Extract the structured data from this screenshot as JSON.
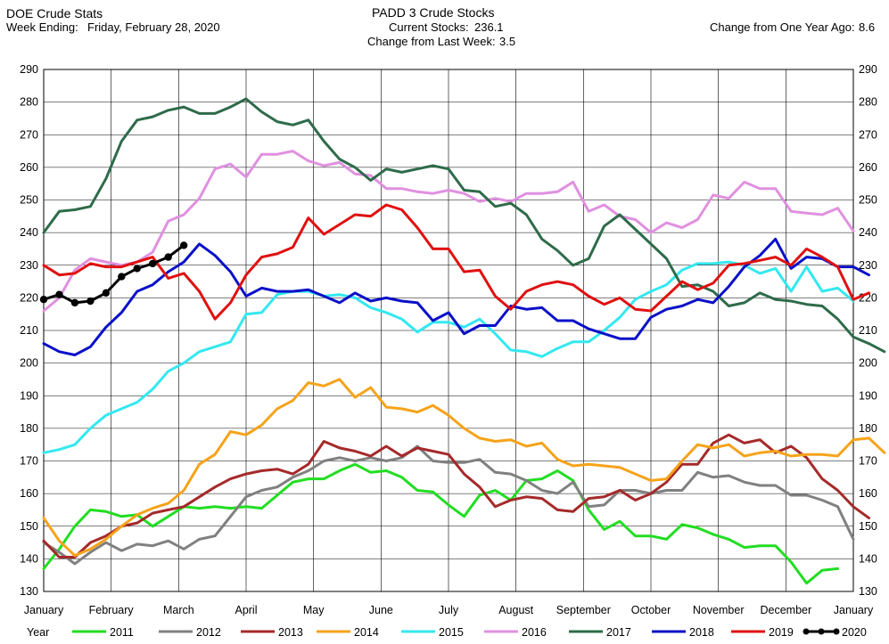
{
  "header": {
    "app_title": "DOE Crude Stats",
    "week_label": "Week Ending:",
    "week_value": "Friday, February 28, 2020",
    "chart_title": "PADD 3 Crude Stocks",
    "current_label": "Current Stocks:",
    "current_value": "236.1",
    "change_week_label": "Change from Last Week:",
    "change_week_value": "3.5",
    "change_year_label": "Change from One Year Ago:",
    "change_year_value": "8.6"
  },
  "chart_data": {
    "type": "line",
    "title": "PADD 3 Crude Stocks",
    "ylim": [
      130,
      290
    ],
    "yticks": [
      130,
      140,
      150,
      160,
      170,
      180,
      190,
      200,
      210,
      220,
      230,
      240,
      250,
      260,
      270,
      280,
      290
    ],
    "xlim": [
      0,
      52
    ],
    "month_labels": [
      "January",
      "February",
      "March",
      "April",
      "May",
      "June",
      "July",
      "August",
      "September",
      "October",
      "November",
      "December",
      "January"
    ],
    "grid": true,
    "legend_title": "Year",
    "legend_position": "bottom",
    "series": [
      {
        "name": "2011",
        "color": "#22dd22",
        "values": [
          137,
          143,
          150,
          155,
          154.5,
          153,
          153.5,
          150,
          153,
          156,
          155.5,
          156,
          155.5,
          156,
          155.5,
          159.5,
          163.5,
          164.5,
          164.5,
          167,
          169,
          166.5,
          167,
          165,
          161,
          160.5,
          156.5,
          153,
          159.5,
          161,
          158,
          164,
          164.5,
          167,
          164,
          155,
          149,
          151.5,
          147,
          147,
          146,
          150.5,
          149.5,
          147.5,
          146,
          143.5,
          144,
          144,
          139,
          132.5,
          136.5,
          137
        ]
      },
      {
        "name": "2012",
        "color": "#808080",
        "values": [
          145,
          142,
          138.5,
          142,
          145,
          142.5,
          144.5,
          144,
          145.5,
          143,
          146,
          147,
          153,
          159,
          161,
          162,
          165,
          167,
          170,
          171,
          170,
          171,
          170,
          171,
          174.5,
          170,
          169.5,
          169.5,
          170.5,
          166.5,
          166,
          164,
          161,
          160,
          163.5,
          156,
          156.5,
          161,
          161,
          160,
          161,
          161,
          166.5,
          165,
          165.5,
          163.5,
          162.5,
          162.5,
          159.5,
          159.5,
          158,
          156,
          146
        ]
      },
      {
        "name": "2013",
        "color": "#a52a2a",
        "values": [
          145.5,
          140.5,
          140.5,
          145,
          147,
          150,
          151,
          154,
          155,
          156,
          159,
          162,
          164.5,
          166,
          167,
          167.5,
          166,
          169,
          176,
          174,
          173,
          171.5,
          174.5,
          171.5,
          174,
          173,
          172,
          166,
          162,
          156,
          158,
          159,
          158.5,
          155,
          154.5,
          158.5,
          159,
          161,
          158,
          160,
          163.5,
          169,
          169,
          175.5,
          178,
          175.5,
          176.5,
          172.5,
          174.5,
          171,
          164.5,
          161,
          156,
          152.5
        ]
      },
      {
        "name": "2014",
        "color": "#f5a31a",
        "values": [
          152.5,
          145.5,
          141,
          143,
          146,
          150,
          153.5,
          155.5,
          157,
          161,
          169,
          172,
          179,
          178,
          181,
          186,
          188.5,
          194,
          193,
          195,
          189.5,
          192.5,
          186.5,
          186,
          185,
          187,
          184,
          180,
          177,
          176,
          176.5,
          174.5,
          175.5,
          170.5,
          168.5,
          169,
          168.5,
          168,
          166,
          164,
          164.5,
          170,
          175,
          174,
          175,
          171.5,
          172.5,
          173,
          171.5,
          172,
          172,
          171.5,
          176.5,
          177,
          172.5
        ]
      },
      {
        "name": "2015",
        "color": "#33e8f0",
        "values": [
          172.5,
          173.5,
          175,
          180,
          184,
          186,
          188,
          192,
          197.5,
          200,
          203.5,
          205,
          206.5,
          215,
          215.5,
          221,
          222,
          222,
          220.5,
          221,
          220,
          217,
          215.5,
          213.5,
          209.5,
          212.5,
          212.5,
          211,
          213.5,
          209,
          204,
          203.5,
          202,
          204.5,
          206.5,
          206.5,
          210,
          214,
          219.5,
          222,
          224,
          228.5,
          230.5,
          230.5,
          231,
          230,
          227.5,
          229,
          222,
          229.5,
          222,
          223,
          219
        ]
      },
      {
        "name": "2016",
        "color": "#e090e0",
        "values": [
          216,
          220,
          228.5,
          232,
          231,
          230,
          231,
          234,
          243.5,
          245.5,
          250.5,
          259.5,
          261,
          257,
          264,
          264,
          265,
          262,
          260.5,
          261.5,
          258,
          257.5,
          253.5,
          253.5,
          252.5,
          252,
          253,
          252,
          249.5,
          250.5,
          249.5,
          252,
          252,
          252.5,
          255.5,
          246.5,
          248.5,
          245,
          244,
          240,
          243,
          241.5,
          244,
          251.5,
          250.5,
          255.5,
          253.5,
          253.5,
          246.5,
          246,
          245.5,
          247.5,
          240.5
        ]
      },
      {
        "name": "2017",
        "color": "#2e6b4a",
        "values": [
          240,
          246.5,
          247,
          248,
          256.5,
          268,
          274.5,
          275.5,
          277.5,
          278.5,
          276.5,
          276.5,
          278.5,
          281,
          277,
          274,
          273,
          274.5,
          268,
          262.5,
          260,
          256,
          259.5,
          258.5,
          259.5,
          260.5,
          259.5,
          253,
          252.5,
          248,
          249,
          245.5,
          238,
          234.5,
          230,
          232,
          242,
          245.5,
          241,
          236.5,
          232,
          223.5,
          224,
          222,
          217.5,
          218.5,
          221.5,
          219.5,
          219,
          218,
          217.5,
          213.5,
          208,
          206,
          203.5
        ]
      },
      {
        "name": "2018",
        "color": "#0a10c8",
        "values": [
          206,
          203.5,
          202.5,
          205,
          211,
          215.5,
          222,
          224,
          228,
          231,
          236.5,
          233,
          228,
          220.5,
          223,
          222,
          222,
          222.5,
          220.5,
          218.5,
          221.5,
          219,
          220,
          219,
          218.5,
          213,
          215.5,
          209,
          211.5,
          211.5,
          217.5,
          216.5,
          217,
          213,
          213,
          210.5,
          209,
          207.5,
          207.5,
          214,
          216.5,
          217.5,
          219.5,
          218.5,
          223.5,
          229.5,
          233,
          238,
          229,
          232.5,
          232,
          229.5,
          229.5,
          227
        ]
      },
      {
        "name": "2019",
        "color": "#e01010",
        "values": [
          230,
          227,
          227.5,
          230.5,
          229.5,
          229.5,
          231,
          232.5,
          226,
          227.5,
          222,
          213.5,
          218.5,
          227,
          232.5,
          233.5,
          235.5,
          244.5,
          239.5,
          242.5,
          245.5,
          245,
          248.5,
          247,
          241.5,
          235,
          235,
          228,
          228.5,
          220.5,
          216.5,
          222,
          224,
          225,
          224,
          220.5,
          218,
          220,
          216.5,
          216,
          220.5,
          225,
          222.5,
          224.5,
          230,
          230.5,
          231.5,
          232.5,
          230,
          235,
          232.5,
          229.5,
          219.5,
          221.5
        ]
      },
      {
        "name": "2020",
        "color": "#000000",
        "values": [
          219.5,
          221,
          218.5,
          219,
          221.5,
          226.5,
          229,
          230.5,
          232.5,
          236.1
        ]
      }
    ]
  }
}
